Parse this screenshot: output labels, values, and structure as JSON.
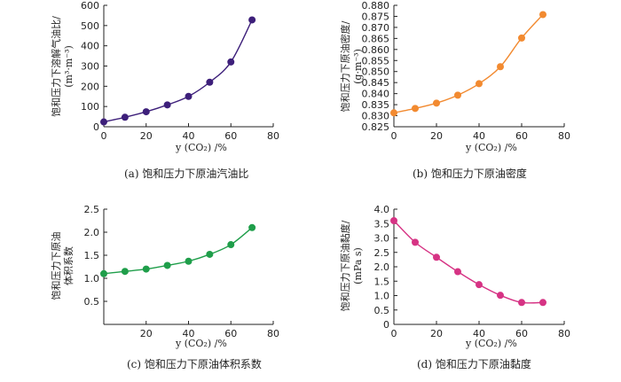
{
  "chart_data": [
    {
      "id": "a",
      "type": "line",
      "caption": "(a)  饱和压力下原油汽油比",
      "xlabel": "y (CO₂) /%",
      "ylabel_lines": [
        "饱和压力下溶解气油比/",
        "(m³·m⁻³)"
      ],
      "xlim": [
        0,
        80
      ],
      "ylim": [
        0,
        600
      ],
      "x_ticks": [
        "0",
        "20",
        "40",
        "60",
        "80"
      ],
      "y_ticks": [
        "0",
        "100",
        "200",
        "300",
        "400",
        "500",
        "600"
      ],
      "color": "#3d1f7a",
      "x": [
        0,
        10,
        20,
        30,
        40,
        50,
        60,
        70
      ],
      "y": [
        24,
        47,
        74,
        108,
        150,
        220,
        320,
        528
      ]
    },
    {
      "id": "b",
      "type": "line",
      "caption": "(b)  饱和压力下原油密度",
      "xlabel": "y (CO₂) /%",
      "ylabel_lines": [
        "饱和压力下原油密度/",
        "(g·m⁻³)"
      ],
      "xlim": [
        0,
        80
      ],
      "ylim": [
        0.825,
        0.88
      ],
      "x_ticks": [
        "0",
        "20",
        "40",
        "60",
        "80"
      ],
      "y_ticks": [
        "0.825",
        "0.830",
        "0.835",
        "0.840",
        "0.845",
        "0.850",
        "0.855",
        "0.860",
        "0.865",
        "0.870",
        "0.875",
        "0.880"
      ],
      "color": "#f28a30",
      "x": [
        0,
        10,
        20,
        30,
        40,
        50,
        60,
        70
      ],
      "y": [
        0.8313,
        0.8333,
        0.8357,
        0.8393,
        0.8445,
        0.8522,
        0.8652,
        0.8758
      ]
    },
    {
      "id": "c",
      "type": "line",
      "caption": "(c)  饱和压力下原油体积系数",
      "xlabel": "y (CO₂) /%",
      "ylabel_lines": [
        "饱和压力下原油",
        "体积系数"
      ],
      "xlim": [
        0,
        80
      ],
      "ylim": [
        0,
        2.5
      ],
      "x_ticks": [
        "20",
        "40",
        "60",
        "80"
      ],
      "y_ticks": [
        "0.5",
        "1.0",
        "1.5",
        "2.0",
        "2.5"
      ],
      "color": "#1f9e4a",
      "x": [
        0,
        10,
        20,
        30,
        40,
        50,
        60,
        70
      ],
      "y": [
        1.1,
        1.15,
        1.2,
        1.28,
        1.37,
        1.52,
        1.73,
        2.1
      ]
    },
    {
      "id": "d",
      "type": "line",
      "caption": "(d)  饱和压力下原油黏度",
      "xlabel": "y (CO₂) /%",
      "ylabel_lines": [
        "饱和压力下原油黏度/",
        "(mPa s)"
      ],
      "xlim": [
        0,
        80
      ],
      "ylim": [
        0,
        4
      ],
      "x_ticks": [
        "0",
        "20",
        "40",
        "60",
        "80"
      ],
      "y_ticks": [
        "0",
        "0.5",
        "1.0",
        "1.5",
        "2.0",
        "2.5",
        "3.0",
        "3.5",
        "4.0"
      ],
      "color": "#d63384",
      "x": [
        0,
        10,
        20,
        30,
        40,
        50,
        60,
        70
      ],
      "y": [
        3.6,
        2.85,
        2.33,
        1.83,
        1.38,
        1.01,
        0.76,
        0.76
      ]
    }
  ]
}
